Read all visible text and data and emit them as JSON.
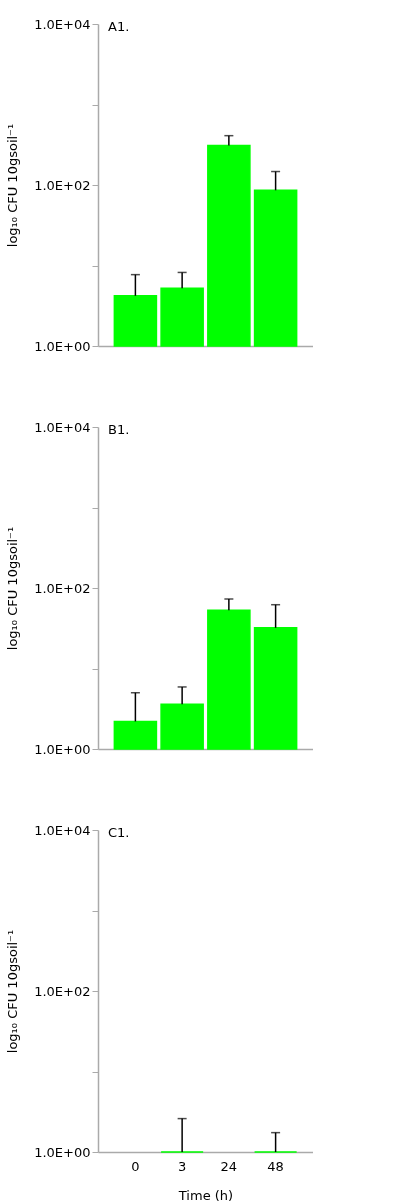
{
  "chart_data": [
    {
      "type": "bar",
      "title": "A1.",
      "ylabel": "log₁₀ CFU 10gsoil⁻¹",
      "categories": [
        "0",
        "3",
        "24",
        "48"
      ],
      "values": [
        4.2,
        5.2,
        310,
        86
      ],
      "errors": [
        [
          4.2,
          7.7
        ],
        [
          5.2,
          8.2
        ],
        [
          310,
          410
        ],
        [
          86,
          147
        ]
      ],
      "color": "#00ff00",
      "log": true,
      "ylim": [
        1,
        10000
      ],
      "yticks": [
        {
          "value": 1,
          "label": "1.0E+00"
        },
        {
          "value": 10,
          "label": null
        },
        {
          "value": 100,
          "label": "1.0E+02"
        },
        {
          "value": 1000,
          "label": null
        },
        {
          "value": 10000,
          "label": "1.0E+04"
        }
      ],
      "tick_labels": "y"
    },
    {
      "type": "bar",
      "title": "B1.",
      "ylabel": "log₁₀ CFU 10gsoil⁻¹",
      "categories": [
        "0",
        "3",
        "24",
        "48"
      ],
      "values": [
        2.2,
        3.6,
        53,
        32
      ],
      "errors": [
        [
          2.2,
          5.0
        ],
        [
          3.6,
          5.9
        ],
        [
          53,
          73
        ],
        [
          32,
          62
        ]
      ],
      "color": "#00ff00",
      "log": true,
      "ylim": [
        1,
        10000
      ],
      "yticks": [
        {
          "value": 1,
          "label": "1.0E+00"
        },
        {
          "value": 10,
          "label": null
        },
        {
          "value": 100,
          "label": "1.0E+02"
        },
        {
          "value": 1000,
          "label": null
        },
        {
          "value": 10000,
          "label": "1.0E+04"
        }
      ],
      "tick_labels": "y"
    },
    {
      "type": "bar",
      "title": "C1.",
      "ylabel": "log₁₀ CFU 10gsoil⁻¹",
      "xlabel": "Time (h)",
      "categories": [
        "0",
        "3",
        "24",
        "48"
      ],
      "values": [
        null,
        1,
        null,
        1
      ],
      "errors": [
        null,
        [
          1,
          2.6
        ],
        null,
        [
          1,
          1.74
        ]
      ],
      "color": "#00ff00",
      "log": true,
      "ylim": [
        1,
        10000
      ],
      "yticks": [
        {
          "value": 1,
          "label": "1.0E+00"
        },
        {
          "value": 10,
          "label": null
        },
        {
          "value": 100,
          "label": "1.0E+02"
        },
        {
          "value": 1000,
          "label": null
        },
        {
          "value": 10000,
          "label": "1.0E+04"
        }
      ]
    }
  ]
}
